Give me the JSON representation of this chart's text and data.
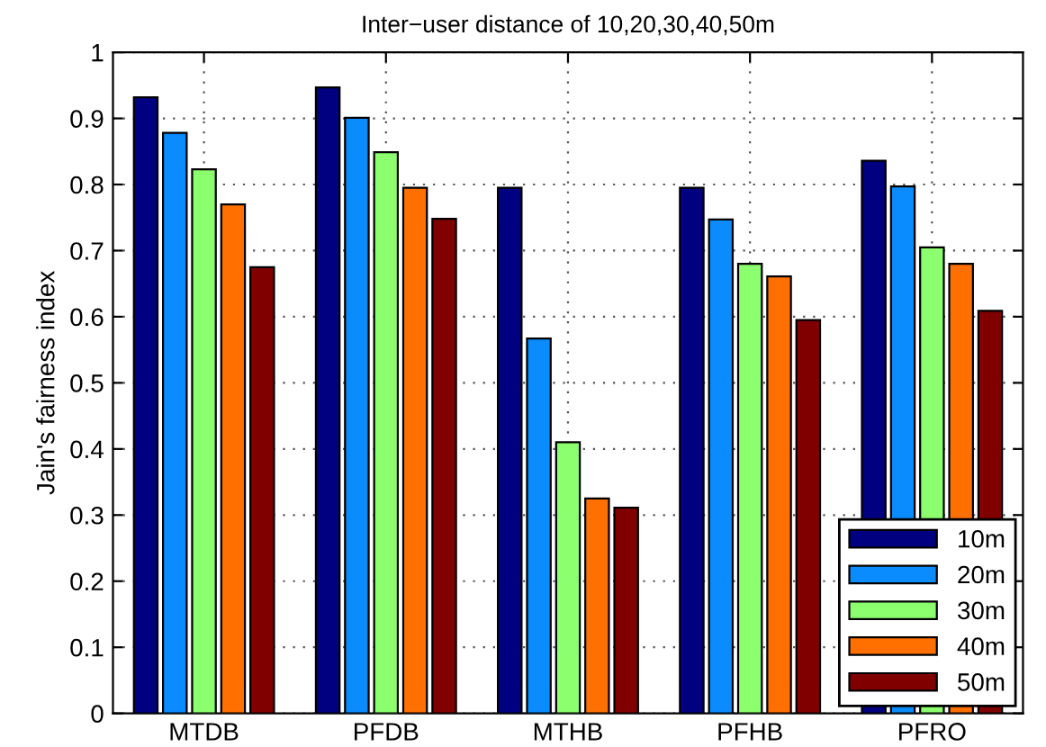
{
  "chart_data": {
    "type": "bar",
    "title": "Inter−user distance of 10,20,30,40,50m",
    "ylabel": "Jain's fairness index",
    "categories": [
      "MTDB",
      "PFDB",
      "MTHB",
      "PFHB",
      "PFRO"
    ],
    "series": [
      {
        "name": "10m",
        "color": "#000080",
        "values": [
          0.932,
          0.947,
          0.795,
          0.795,
          0.836
        ]
      },
      {
        "name": "20m",
        "color": "#0a8cff",
        "values": [
          0.878,
          0.901,
          0.567,
          0.747,
          0.797
        ]
      },
      {
        "name": "30m",
        "color": "#8cff6e",
        "values": [
          0.823,
          0.849,
          0.41,
          0.68,
          0.705
        ]
      },
      {
        "name": "40m",
        "color": "#ff7000",
        "values": [
          0.77,
          0.795,
          0.325,
          0.661,
          0.68
        ]
      },
      {
        "name": "50m",
        "color": "#800000",
        "values": [
          0.675,
          0.748,
          0.311,
          0.595,
          0.609
        ]
      }
    ],
    "ylim": [
      0,
      1
    ],
    "yticks": [
      0,
      0.1,
      0.2,
      0.3,
      0.4,
      0.5,
      0.6,
      0.7,
      0.8,
      0.9,
      1
    ],
    "grid": true,
    "legend": "bottom right"
  }
}
